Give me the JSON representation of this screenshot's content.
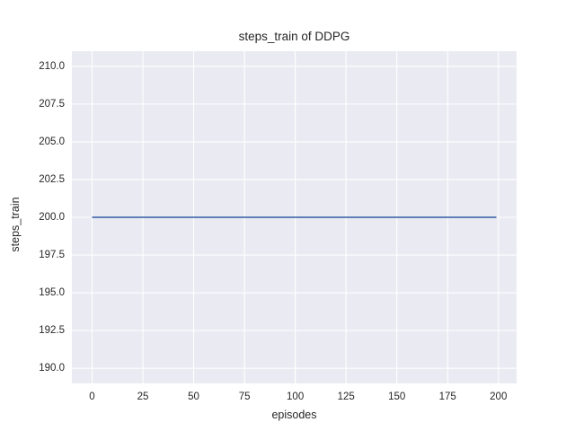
{
  "chart": {
    "title": "steps_train of DDPG",
    "xlabel": "episodes",
    "ylabel": "steps_train"
  },
  "chart_data": {
    "type": "line",
    "title": "steps_train of DDPG",
    "xlabel": "episodes",
    "ylabel": "steps_train",
    "series": [
      {
        "name": "steps_train",
        "x": [
          0,
          199
        ],
        "y": [
          200,
          200
        ],
        "constant_value": 200,
        "color": "#4c72b0"
      }
    ],
    "x_ticks": [
      {
        "value": 0,
        "label": "0"
      },
      {
        "value": 25,
        "label": "25"
      },
      {
        "value": 50,
        "label": "50"
      },
      {
        "value": 75,
        "label": "75"
      },
      {
        "value": 100,
        "label": "100"
      },
      {
        "value": 125,
        "label": "125"
      },
      {
        "value": 150,
        "label": "150"
      },
      {
        "value": 175,
        "label": "175"
      },
      {
        "value": 200,
        "label": "200"
      }
    ],
    "y_ticks": [
      {
        "value": 210.0,
        "label": "210.0"
      },
      {
        "value": 207.5,
        "label": "207.5"
      },
      {
        "value": 205.0,
        "label": "205.0"
      },
      {
        "value": 202.5,
        "label": "202.5"
      },
      {
        "value": 200.0,
        "label": "200.0"
      },
      {
        "value": 197.5,
        "label": "197.5"
      },
      {
        "value": 195.0,
        "label": "195.0"
      },
      {
        "value": 192.5,
        "label": "192.5"
      },
      {
        "value": 190.0,
        "label": "190.0"
      }
    ],
    "xlim": [
      -9.95,
      208.95
    ],
    "ylim": [
      189.0,
      211.0
    ],
    "grid": true,
    "legend": "none",
    "colors": {
      "line": "#4c72b0",
      "plot_background": "#eaeaf2",
      "grid": "#ffffff",
      "figure_background": "#ffffff",
      "text": "#262626"
    }
  }
}
